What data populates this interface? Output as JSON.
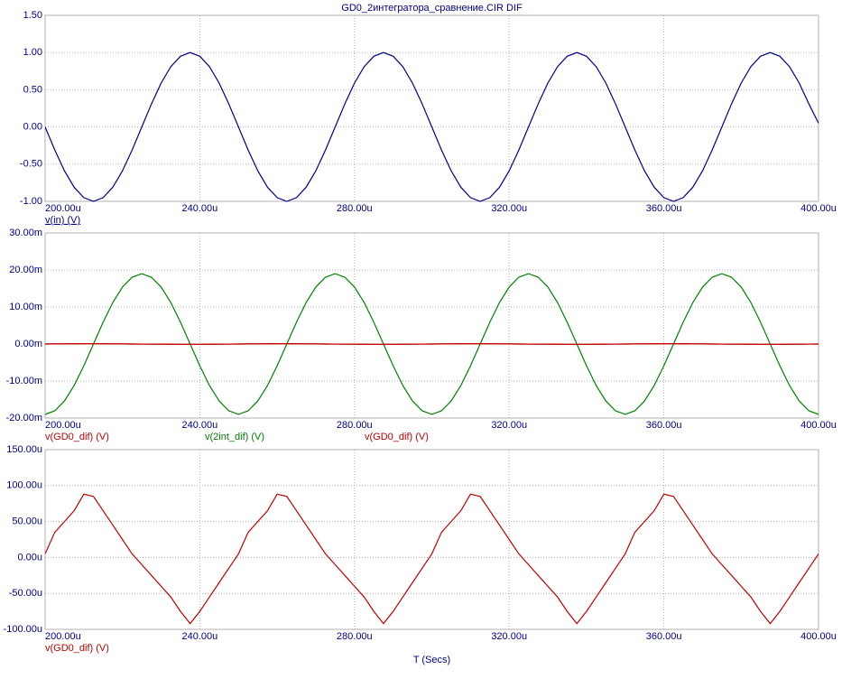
{
  "chart_data": [
    {
      "type": "line",
      "title": "GD0_2интегратора_сравнение.CIR DIF",
      "grid": true,
      "x": [
        0.0002,
        0.0002025,
        0.000205,
        0.0002075,
        0.00021,
        0.0002125,
        0.000215,
        0.0002175,
        0.00022,
        0.0002225,
        0.000225,
        0.0002275,
        0.00023,
        0.0002325,
        0.000235,
        0.0002375,
        0.00024,
        0.0002425,
        0.000245,
        0.0002475,
        0.00025,
        0.0002525,
        0.000255,
        0.0002575,
        0.00026,
        0.0002625,
        0.000265,
        0.0002675,
        0.00027,
        0.0002725,
        0.000275,
        0.0002775,
        0.00028,
        0.0002825,
        0.000285,
        0.0002875,
        0.00029,
        0.0002925,
        0.000295,
        0.0002975,
        0.0003,
        0.0003025,
        0.000305,
        0.0003075,
        0.00031,
        0.0003125,
        0.000315,
        0.0003175,
        0.00032,
        0.0003225,
        0.000325,
        0.0003275,
        0.00033,
        0.0003325,
        0.000335,
        0.0003375,
        0.00034,
        0.0003425,
        0.000345,
        0.0003475,
        0.00035,
        0.0003525,
        0.000355,
        0.0003575,
        0.00036,
        0.0003625,
        0.000365,
        0.0003675,
        0.00037,
        0.0003725,
        0.000375,
        0.0003775,
        0.00038,
        0.0003825,
        0.000385,
        0.0003875,
        0.00039,
        0.0003925,
        0.000395,
        0.0003975,
        0.0004
      ],
      "series": [
        {
          "name": "v(in) (V)",
          "color": "#00008b",
          "values": [
            0,
            -0.31,
            -0.59,
            -0.81,
            -0.95,
            -1,
            -0.95,
            -0.81,
            -0.59,
            -0.31,
            0,
            0.31,
            0.59,
            0.81,
            0.95,
            1,
            0.95,
            0.81,
            0.59,
            0.31,
            0,
            -0.31,
            -0.59,
            -0.81,
            -0.95,
            -1,
            -0.95,
            -0.81,
            -0.59,
            -0.31,
            0,
            0.31,
            0.59,
            0.81,
            0.95,
            1,
            0.95,
            0.81,
            0.59,
            0.31,
            0,
            -0.31,
            -0.59,
            -0.81,
            -0.95,
            -1,
            -0.95,
            -0.81,
            -0.59,
            -0.31,
            0,
            0.31,
            0.59,
            0.81,
            0.95,
            1,
            0.95,
            0.81,
            0.59,
            0.31,
            0,
            -0.31,
            -0.59,
            -0.81,
            -0.95,
            -1,
            -0.95,
            -0.81,
            -0.59,
            -0.31,
            0,
            0.31,
            0.59,
            0.81,
            0.95,
            1,
            0.95,
            0.81,
            0.59,
            0.31,
            0.05
          ]
        }
      ],
      "xlim": [
        0.0002,
        0.0004
      ],
      "xticks": [
        {
          "value": 0.0002,
          "label": "200.00u"
        },
        {
          "value": 0.00024,
          "label": "240.00u"
        },
        {
          "value": 0.00028,
          "label": "280.00u"
        },
        {
          "value": 0.00032,
          "label": "320.00u"
        },
        {
          "value": 0.00036,
          "label": "360.00u"
        },
        {
          "value": 0.0004,
          "label": "400.00u"
        }
      ],
      "ylim": [
        -1,
        1.5
      ],
      "yticks": [
        {
          "value": 1.5,
          "label": "1.50"
        },
        {
          "value": 1,
          "label": "1.00"
        },
        {
          "value": 0.5,
          "label": "0.50"
        },
        {
          "value": 0,
          "label": "0.00"
        },
        {
          "value": -0.5,
          "label": "-0.50"
        },
        {
          "value": -1,
          "label": "-1.00"
        }
      ]
    },
    {
      "type": "line",
      "grid": true,
      "x": [
        0.0002,
        0.0002025,
        0.000205,
        0.0002075,
        0.00021,
        0.0002125,
        0.000215,
        0.0002175,
        0.00022,
        0.0002225,
        0.000225,
        0.0002275,
        0.00023,
        0.0002325,
        0.000235,
        0.0002375,
        0.00024,
        0.0002425,
        0.000245,
        0.0002475,
        0.00025,
        0.0002525,
        0.000255,
        0.0002575,
        0.00026,
        0.0002625,
        0.000265,
        0.0002675,
        0.00027,
        0.0002725,
        0.000275,
        0.0002775,
        0.00028,
        0.0002825,
        0.000285,
        0.0002875,
        0.00029,
        0.0002925,
        0.000295,
        0.0002975,
        0.0003,
        0.0003025,
        0.000305,
        0.0003075,
        0.00031,
        0.0003125,
        0.000315,
        0.0003175,
        0.00032,
        0.0003225,
        0.000325,
        0.0003275,
        0.00033,
        0.0003325,
        0.000335,
        0.0003375,
        0.00034,
        0.0003425,
        0.000345,
        0.0003475,
        0.00035,
        0.0003525,
        0.000355,
        0.0003575,
        0.00036,
        0.0003625,
        0.000365,
        0.0003675,
        0.00037,
        0.0003725,
        0.000375,
        0.0003775,
        0.00038,
        0.0003825,
        0.000385,
        0.0003875,
        0.00039,
        0.0003925,
        0.000395,
        0.0003975,
        0.0004
      ],
      "series": [
        {
          "name": "v(GD0_dif) (V)",
          "color": "#c00000",
          "values": [
            5e-06,
            3.5e-05,
            5e-05,
            6.5e-05,
            8.8e-05,
            8.5e-05,
            6.5e-05,
            4.5e-05,
            2.5e-05,
            5e-06,
            -1e-05,
            -2.5e-05,
            -4e-05,
            -5.5e-05,
            -7.5e-05,
            -9.2e-05,
            -7.5e-05,
            -5.5e-05,
            -3.5e-05,
            -1.5e-05,
            5e-06,
            3.5e-05,
            5e-05,
            6.5e-05,
            8.8e-05,
            8.5e-05,
            6.5e-05,
            4.5e-05,
            2.5e-05,
            5e-06,
            -1e-05,
            -2.5e-05,
            -4e-05,
            -5.5e-05,
            -7.5e-05,
            -9.2e-05,
            -7.5e-05,
            -5.5e-05,
            -3.5e-05,
            -1.5e-05,
            5e-06,
            3.5e-05,
            5e-05,
            6.5e-05,
            8.8e-05,
            8.5e-05,
            6.5e-05,
            4.5e-05,
            2.5e-05,
            5e-06,
            -1e-05,
            -2.5e-05,
            -4e-05,
            -5.5e-05,
            -7.5e-05,
            -9.2e-05,
            -7.5e-05,
            -5.5e-05,
            -3.5e-05,
            -1.5e-05,
            5e-06,
            3.5e-05,
            5e-05,
            6.5e-05,
            8.8e-05,
            8.5e-05,
            6.5e-05,
            4.5e-05,
            2.5e-05,
            5e-06,
            -1e-05,
            -2.5e-05,
            -4e-05,
            -5.5e-05,
            -7.5e-05,
            -9.2e-05,
            -7.5e-05,
            -5.5e-05,
            -3.5e-05,
            -1.5e-05,
            5e-06
          ]
        },
        {
          "name": "v(2int_dif) (V)",
          "color": "#008000",
          "values": [
            -0.019,
            -0.01805,
            -0.01539,
            -0.01121,
            -0.00589,
            0,
            0.00589,
            0.01121,
            0.01539,
            0.01805,
            0.019,
            0.01805,
            0.01539,
            0.01121,
            0.00589,
            0,
            -0.00589,
            -0.01121,
            -0.01539,
            -0.01805,
            -0.019,
            -0.01805,
            -0.01539,
            -0.01121,
            -0.00589,
            0,
            0.00589,
            0.01121,
            0.01539,
            0.01805,
            0.019,
            0.01805,
            0.01539,
            0.01121,
            0.00589,
            0,
            -0.00589,
            -0.01121,
            -0.01539,
            -0.01805,
            -0.019,
            -0.01805,
            -0.01539,
            -0.01121,
            -0.00589,
            0,
            0.00589,
            0.01121,
            0.01539,
            0.01805,
            0.019,
            0.01805,
            0.01539,
            0.01121,
            0.00589,
            0,
            -0.00589,
            -0.01121,
            -0.01539,
            -0.01805,
            -0.019,
            -0.01805,
            -0.01539,
            -0.01121,
            -0.00589,
            0,
            0.00589,
            0.01121,
            0.01539,
            0.01805,
            0.019,
            0.01805,
            0.01539,
            0.01121,
            0.00589,
            0,
            -0.00589,
            -0.01121,
            -0.01539,
            -0.01805,
            -0.019
          ]
        },
        {
          "name": "v(GD0_dif) (V)",
          "color": "#c00000",
          "values": [
            5e-06,
            3.5e-05,
            5e-05,
            6.5e-05,
            8.8e-05,
            8.5e-05,
            6.5e-05,
            4.5e-05,
            2.5e-05,
            5e-06,
            -1e-05,
            -2.5e-05,
            -4e-05,
            -5.5e-05,
            -7.5e-05,
            -9.2e-05,
            -7.5e-05,
            -5.5e-05,
            -3.5e-05,
            -1.5e-05,
            5e-06,
            3.5e-05,
            5e-05,
            6.5e-05,
            8.8e-05,
            8.5e-05,
            6.5e-05,
            4.5e-05,
            2.5e-05,
            5e-06,
            -1e-05,
            -2.5e-05,
            -4e-05,
            -5.5e-05,
            -7.5e-05,
            -9.2e-05,
            -7.5e-05,
            -5.5e-05,
            -3.5e-05,
            -1.5e-05,
            5e-06,
            3.5e-05,
            5e-05,
            6.5e-05,
            8.8e-05,
            8.5e-05,
            6.5e-05,
            4.5e-05,
            2.5e-05,
            5e-06,
            -1e-05,
            -2.5e-05,
            -4e-05,
            -5.5e-05,
            -7.5e-05,
            -9.2e-05,
            -7.5e-05,
            -5.5e-05,
            -3.5e-05,
            -1.5e-05,
            5e-06,
            3.5e-05,
            5e-05,
            6.5e-05,
            8.8e-05,
            8.5e-05,
            6.5e-05,
            4.5e-05,
            2.5e-05,
            5e-06,
            -1e-05,
            -2.5e-05,
            -4e-05,
            -5.5e-05,
            -7.5e-05,
            -9.2e-05,
            -7.5e-05,
            -5.5e-05,
            -3.5e-05,
            -1.5e-05,
            5e-06
          ]
        }
      ],
      "xlim": [
        0.0002,
        0.0004
      ],
      "xticks": [
        {
          "value": 0.0002,
          "label": "200.00u"
        },
        {
          "value": 0.00024,
          "label": "240.00u"
        },
        {
          "value": 0.00028,
          "label": "280.00u"
        },
        {
          "value": 0.00032,
          "label": "320.00u"
        },
        {
          "value": 0.00036,
          "label": "360.00u"
        },
        {
          "value": 0.0004,
          "label": "400.00u"
        }
      ],
      "ylim": [
        -0.02,
        0.03
      ],
      "yticks": [
        {
          "value": 0.03,
          "label": "30.00m"
        },
        {
          "value": 0.02,
          "label": "20.00m"
        },
        {
          "value": 0.01,
          "label": "10.00m"
        },
        {
          "value": 0,
          "label": "0.00m"
        },
        {
          "value": -0.01,
          "label": "-10.00m"
        },
        {
          "value": -0.02,
          "label": "-20.00m"
        }
      ]
    },
    {
      "type": "line",
      "grid": true,
      "xlabel": "T (Secs)",
      "x": [
        0.0002,
        0.0002025,
        0.000205,
        0.0002075,
        0.00021,
        0.0002125,
        0.000215,
        0.0002175,
        0.00022,
        0.0002225,
        0.000225,
        0.0002275,
        0.00023,
        0.0002325,
        0.000235,
        0.0002375,
        0.00024,
        0.0002425,
        0.000245,
        0.0002475,
        0.00025,
        0.0002525,
        0.000255,
        0.0002575,
        0.00026,
        0.0002625,
        0.000265,
        0.0002675,
        0.00027,
        0.0002725,
        0.000275,
        0.0002775,
        0.00028,
        0.0002825,
        0.000285,
        0.0002875,
        0.00029,
        0.0002925,
        0.000295,
        0.0002975,
        0.0003,
        0.0003025,
        0.000305,
        0.0003075,
        0.00031,
        0.0003125,
        0.000315,
        0.0003175,
        0.00032,
        0.0003225,
        0.000325,
        0.0003275,
        0.00033,
        0.0003325,
        0.000335,
        0.0003375,
        0.00034,
        0.0003425,
        0.000345,
        0.0003475,
        0.00035,
        0.0003525,
        0.000355,
        0.0003575,
        0.00036,
        0.0003625,
        0.000365,
        0.0003675,
        0.00037,
        0.0003725,
        0.000375,
        0.0003775,
        0.00038,
        0.0003825,
        0.000385,
        0.0003875,
        0.00039,
        0.0003925,
        0.000395,
        0.0003975,
        0.0004
      ],
      "series": [
        {
          "name": "v(GD0_dif) (V)",
          "color": "#c00000",
          "values": [
            5e-06,
            3.5e-05,
            5e-05,
            6.5e-05,
            8.8e-05,
            8.5e-05,
            6.5e-05,
            4.5e-05,
            2.5e-05,
            5e-06,
            -1e-05,
            -2.5e-05,
            -4e-05,
            -5.5e-05,
            -7.5e-05,
            -9.2e-05,
            -7.5e-05,
            -5.5e-05,
            -3.5e-05,
            -1.5e-05,
            5e-06,
            3.5e-05,
            5e-05,
            6.5e-05,
            8.8e-05,
            8.5e-05,
            6.5e-05,
            4.5e-05,
            2.5e-05,
            5e-06,
            -1e-05,
            -2.5e-05,
            -4e-05,
            -5.5e-05,
            -7.5e-05,
            -9.2e-05,
            -7.5e-05,
            -5.5e-05,
            -3.5e-05,
            -1.5e-05,
            5e-06,
            3.5e-05,
            5e-05,
            6.5e-05,
            8.8e-05,
            8.5e-05,
            6.5e-05,
            4.5e-05,
            2.5e-05,
            5e-06,
            -1e-05,
            -2.5e-05,
            -4e-05,
            -5.5e-05,
            -7.5e-05,
            -9.2e-05,
            -7.5e-05,
            -5.5e-05,
            -3.5e-05,
            -1.5e-05,
            5e-06,
            3.5e-05,
            5e-05,
            6.5e-05,
            8.8e-05,
            8.5e-05,
            6.5e-05,
            4.5e-05,
            2.5e-05,
            5e-06,
            -1e-05,
            -2.5e-05,
            -4e-05,
            -5.5e-05,
            -7.5e-05,
            -9.2e-05,
            -7.5e-05,
            -5.5e-05,
            -3.5e-05,
            -1.5e-05,
            5e-06
          ]
        }
      ],
      "xlim": [
        0.0002,
        0.0004
      ],
      "xticks": [
        {
          "value": 0.0002,
          "label": "200.00u"
        },
        {
          "value": 0.00024,
          "label": "240.00u"
        },
        {
          "value": 0.00028,
          "label": "280.00u"
        },
        {
          "value": 0.00032,
          "label": "320.00u"
        },
        {
          "value": 0.00036,
          "label": "360.00u"
        },
        {
          "value": 0.0004,
          "label": "400.00u"
        }
      ],
      "ylim": [
        -0.0001,
        0.00015
      ],
      "yticks": [
        {
          "value": 0.00015,
          "label": "150.00u"
        },
        {
          "value": 0.0001,
          "label": "100.00u"
        },
        {
          "value": 5e-05,
          "label": "50.00u"
        },
        {
          "value": 0,
          "label": "0.00u"
        },
        {
          "value": -5e-05,
          "label": "-50.00u"
        },
        {
          "value": -0.0001,
          "label": "-100.00u"
        }
      ]
    }
  ]
}
